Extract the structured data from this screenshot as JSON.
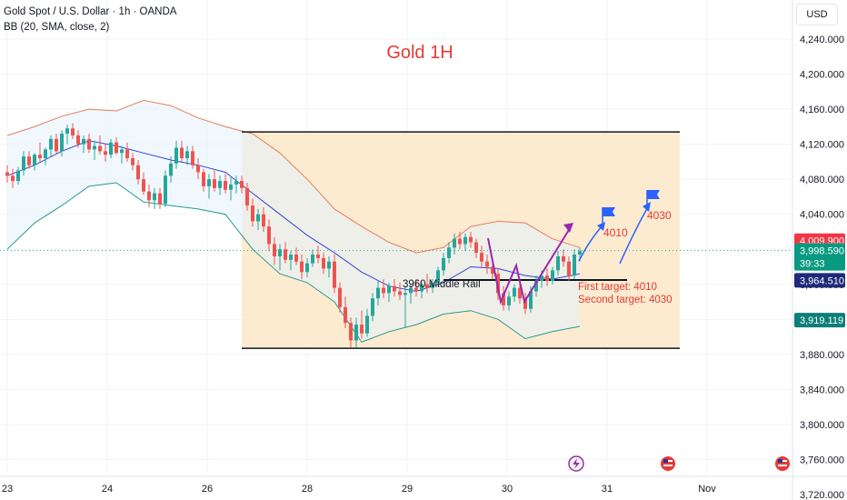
{
  "header": {
    "symbol": "Gold Spot / U.S. Dollar · 1h · OANDA",
    "indicator": "BB (20, SMA, close, 2)"
  },
  "currency_button": "USD",
  "colors": {
    "up": "#26a69a",
    "down": "#ef5350",
    "bb_upper": "#e67e5f",
    "bb_lower": "#26998f",
    "bb_basis": "#3344d6",
    "bb_fill": "#e3f2fd",
    "range_box": "#fde7c8",
    "title": "#e53935",
    "annot_blue": "#2962ff",
    "annot_purple": "#9c27b0",
    "annot_red": "#e53935"
  },
  "chart_data": {
    "type": "candlestick",
    "title": "Gold 1H",
    "ylim": [
      3700,
      4265
    ],
    "y_ticks": [
      "4,240.000",
      "4,200.000",
      "4,160.000",
      "4,120.000",
      "4,080.000",
      "4,040.000",
      "4,000.000",
      "3,960.000",
      "3,920.000",
      "3,880.000",
      "3,840.000",
      "3,800.000",
      "3,760.000",
      "3,720.000"
    ],
    "y_tick_values": [
      4240,
      4200,
      4160,
      4120,
      4080,
      4040,
      4000,
      3960,
      3920,
      3880,
      3840,
      3800,
      3760,
      3720
    ],
    "x_ticks": [
      "23",
      "24",
      "26",
      "28",
      "29",
      "30",
      "31",
      "Nov"
    ],
    "x_tick_positions": [
      0,
      110,
      220,
      330,
      440,
      550,
      660,
      770
    ],
    "candles": [
      [
        0,
        4088,
        4096,
        4076,
        4084
      ],
      [
        6,
        4084,
        4092,
        4070,
        4078
      ],
      [
        12,
        4078,
        4094,
        4074,
        4090
      ],
      [
        18,
        4090,
        4112,
        4084,
        4106
      ],
      [
        24,
        4106,
        4112,
        4092,
        4096
      ],
      [
        30,
        4096,
        4110,
        4090,
        4108
      ],
      [
        36,
        4108,
        4122,
        4100,
        4104
      ],
      [
        42,
        4104,
        4116,
        4096,
        4114
      ],
      [
        48,
        4114,
        4130,
        4106,
        4126
      ],
      [
        54,
        4126,
        4132,
        4108,
        4112
      ],
      [
        60,
        4112,
        4136,
        4106,
        4132
      ],
      [
        66,
        4132,
        4142,
        4120,
        4138
      ],
      [
        72,
        4138,
        4144,
        4126,
        4130
      ],
      [
        78,
        4130,
        4136,
        4116,
        4120
      ],
      [
        84,
        4120,
        4130,
        4110,
        4126
      ],
      [
        90,
        4126,
        4132,
        4110,
        4114
      ],
      [
        96,
        4114,
        4124,
        4102,
        4118
      ],
      [
        102,
        4118,
        4130,
        4108,
        4112
      ],
      [
        108,
        4112,
        4120,
        4100,
        4108
      ],
      [
        114,
        4108,
        4126,
        4104,
        4122
      ],
      [
        120,
        4122,
        4128,
        4108,
        4110
      ],
      [
        126,
        4110,
        4118,
        4098,
        4114
      ],
      [
        132,
        4114,
        4122,
        4100,
        4104
      ],
      [
        138,
        4104,
        4110,
        4090,
        4096
      ],
      [
        144,
        4096,
        4102,
        4074,
        4080
      ],
      [
        150,
        4080,
        4088,
        4062,
        4066
      ],
      [
        156,
        4066,
        4074,
        4048,
        4056
      ],
      [
        162,
        4056,
        4070,
        4046,
        4064
      ],
      [
        168,
        4064,
        4070,
        4046,
        4052
      ],
      [
        174,
        4052,
        4090,
        4048,
        4084
      ],
      [
        180,
        4084,
        4106,
        4076,
        4098
      ],
      [
        186,
        4098,
        4124,
        4092,
        4116
      ],
      [
        192,
        4116,
        4124,
        4100,
        4104
      ],
      [
        198,
        4104,
        4118,
        4096,
        4112
      ],
      [
        204,
        4112,
        4118,
        4092,
        4096
      ],
      [
        210,
        4096,
        4104,
        4080,
        4088
      ],
      [
        216,
        4088,
        4092,
        4066,
        4072
      ],
      [
        222,
        4072,
        4086,
        4058,
        4080
      ],
      [
        228,
        4080,
        4090,
        4066,
        4070
      ],
      [
        234,
        4070,
        4084,
        4062,
        4078
      ],
      [
        240,
        4078,
        4086,
        4064,
        4068
      ],
      [
        246,
        4068,
        4082,
        4056,
        4074
      ],
      [
        252,
        4074,
        4084,
        4064,
        4078
      ],
      [
        258,
        4078,
        4084,
        4064,
        4070
      ],
      [
        264,
        4070,
        4076,
        4044,
        4050
      ],
      [
        270,
        4050,
        4058,
        4026,
        4032
      ],
      [
        276,
        4032,
        4046,
        4022,
        4040
      ],
      [
        282,
        4040,
        4048,
        4020,
        4026
      ],
      [
        288,
        4026,
        4034,
        3998,
        4006
      ],
      [
        294,
        4006,
        4014,
        3982,
        3992
      ],
      [
        300,
        3992,
        4006,
        3976,
        4000
      ],
      [
        306,
        4000,
        4008,
        3984,
        3988
      ],
      [
        312,
        3988,
        3998,
        3976,
        3994
      ],
      [
        318,
        3994,
        4002,
        3982,
        3986
      ],
      [
        324,
        3986,
        3994,
        3966,
        3974
      ],
      [
        330,
        3974,
        3990,
        3968,
        3984
      ],
      [
        336,
        3984,
        4000,
        3980,
        3994
      ],
      [
        342,
        3994,
        4004,
        3984,
        3990
      ],
      [
        348,
        3990,
        3996,
        3972,
        3978
      ],
      [
        354,
        3978,
        3992,
        3968,
        3986
      ],
      [
        360,
        3986,
        3994,
        3950,
        3956
      ],
      [
        366,
        3956,
        3962,
        3928,
        3934
      ],
      [
        372,
        3934,
        3946,
        3910,
        3916
      ],
      [
        378,
        3916,
        3922,
        3888,
        3896
      ],
      [
        384,
        3896,
        3922,
        3888,
        3914
      ],
      [
        390,
        3914,
        3930,
        3898,
        3904
      ],
      [
        396,
        3904,
        3932,
        3900,
        3924
      ],
      [
        402,
        3924,
        3950,
        3918,
        3944
      ],
      [
        408,
        3944,
        3964,
        3936,
        3956
      ],
      [
        414,
        3956,
        3966,
        3944,
        3950
      ],
      [
        420,
        3950,
        3962,
        3940,
        3958
      ],
      [
        426,
        3958,
        3966,
        3946,
        3952
      ],
      [
        432,
        3952,
        3962,
        3942,
        3948
      ],
      [
        438,
        3948,
        3958,
        3910,
        3950
      ],
      [
        444,
        3950,
        3960,
        3938,
        3956
      ],
      [
        450,
        3956,
        3966,
        3946,
        3952
      ],
      [
        456,
        3952,
        3962,
        3944,
        3960
      ],
      [
        462,
        3960,
        3972,
        3950,
        3956
      ],
      [
        468,
        3956,
        3966,
        3950,
        3962
      ],
      [
        474,
        3962,
        3980,
        3958,
        3976
      ],
      [
        480,
        3976,
        3996,
        3970,
        3990
      ],
      [
        486,
        3990,
        4008,
        3984,
        4002
      ],
      [
        492,
        4002,
        4018,
        3994,
        4012
      ],
      [
        498,
        4012,
        4020,
        4000,
        4006
      ],
      [
        504,
        4006,
        4018,
        3998,
        4014
      ],
      [
        510,
        4014,
        4020,
        4002,
        4008
      ],
      [
        516,
        4008,
        4012,
        3990,
        3996
      ],
      [
        522,
        3996,
        4004,
        3980,
        3986
      ],
      [
        528,
        3986,
        3994,
        3972,
        3980
      ],
      [
        534,
        3980,
        3990,
        3966,
        3972
      ],
      [
        540,
        3972,
        3978,
        3942,
        3950
      ],
      [
        546,
        3950,
        3958,
        3930,
        3936
      ],
      [
        552,
        3936,
        3952,
        3930,
        3946
      ],
      [
        558,
        3946,
        3960,
        3940,
        3956
      ],
      [
        564,
        3956,
        3962,
        3938,
        3944
      ],
      [
        570,
        3944,
        3950,
        3926,
        3932
      ],
      [
        576,
        3932,
        3958,
        3928,
        3952
      ],
      [
        582,
        3952,
        3970,
        3946,
        3964
      ],
      [
        588,
        3964,
        3976,
        3956,
        3970
      ],
      [
        594,
        3970,
        3978,
        3958,
        3964
      ],
      [
        600,
        3964,
        3980,
        3960,
        3976
      ],
      [
        606,
        3976,
        3998,
        3970,
        3992
      ],
      [
        612,
        3992,
        4000,
        3980,
        3986
      ],
      [
        618,
        3986,
        3992,
        3964,
        3970
      ],
      [
        624,
        3970,
        4000,
        3966,
        3994
      ],
      [
        630,
        3994,
        4002,
        3986,
        3998
      ]
    ],
    "bollinger": {
      "upper": [
        [
          0,
          4130
        ],
        [
          30,
          4140
        ],
        [
          60,
          4152
        ],
        [
          90,
          4160
        ],
        [
          120,
          4158
        ],
        [
          150,
          4170
        ],
        [
          180,
          4164
        ],
        [
          210,
          4150
        ],
        [
          240,
          4140
        ],
        [
          270,
          4132
        ],
        [
          300,
          4110
        ],
        [
          330,
          4080
        ],
        [
          360,
          4046
        ],
        [
          390,
          4026
        ],
        [
          420,
          4008
        ],
        [
          450,
          3996
        ],
        [
          480,
          4002
        ],
        [
          510,
          4026
        ],
        [
          540,
          4032
        ],
        [
          570,
          4030
        ],
        [
          600,
          4012
        ],
        [
          630,
          4002
        ]
      ],
      "basis": [
        [
          0,
          4084
        ],
        [
          30,
          4096
        ],
        [
          60,
          4112
        ],
        [
          90,
          4124
        ],
        [
          120,
          4118
        ],
        [
          150,
          4110
        ],
        [
          180,
          4102
        ],
        [
          210,
          4096
        ],
        [
          240,
          4088
        ],
        [
          270,
          4064
        ],
        [
          300,
          4040
        ],
        [
          330,
          4016
        ],
        [
          360,
          3996
        ],
        [
          390,
          3974
        ],
        [
          420,
          3958
        ],
        [
          450,
          3952
        ],
        [
          480,
          3962
        ],
        [
          510,
          3980
        ],
        [
          540,
          3978
        ],
        [
          570,
          3970
        ],
        [
          600,
          3966
        ],
        [
          630,
          3972
        ]
      ],
      "lower": [
        [
          0,
          4000
        ],
        [
          30,
          4030
        ],
        [
          60,
          4050
        ],
        [
          90,
          4072
        ],
        [
          120,
          4076
        ],
        [
          150,
          4054
        ],
        [
          180,
          4050
        ],
        [
          210,
          4046
        ],
        [
          240,
          4040
        ],
        [
          270,
          4000
        ],
        [
          300,
          3972
        ],
        [
          330,
          3962
        ],
        [
          360,
          3940
        ],
        [
          390,
          3894
        ],
        [
          420,
          3906
        ],
        [
          450,
          3914
        ],
        [
          480,
          3926
        ],
        [
          510,
          3930
        ],
        [
          540,
          3920
        ],
        [
          570,
          3898
        ],
        [
          600,
          3906
        ],
        [
          630,
          3912
        ]
      ]
    },
    "range_box": {
      "x_start": 258,
      "x_end": 740,
      "top": 4134,
      "bottom": 3887
    },
    "support_line": {
      "x_start": 480,
      "x_end": 682,
      "y": 3965
    },
    "price_labels": [
      {
        "value": 4009.9,
        "text": "4,009.900",
        "style": "red"
      },
      {
        "value": 3998.59,
        "text": "3,998.590",
        "countdown": "39:33",
        "style": "green"
      },
      {
        "value": 3964.51,
        "text": "3,964.510",
        "style": "navy"
      },
      {
        "value": 3919.119,
        "text": "3,919.119",
        "style": "teal"
      }
    ],
    "current_price_line": 3998.59,
    "annotations": {
      "middle_rail": "3960 Middle Rail",
      "first_target": "First target: 4010",
      "second_target": "Second target: 4030",
      "flag1": "4010",
      "flag2": "4030"
    }
  }
}
